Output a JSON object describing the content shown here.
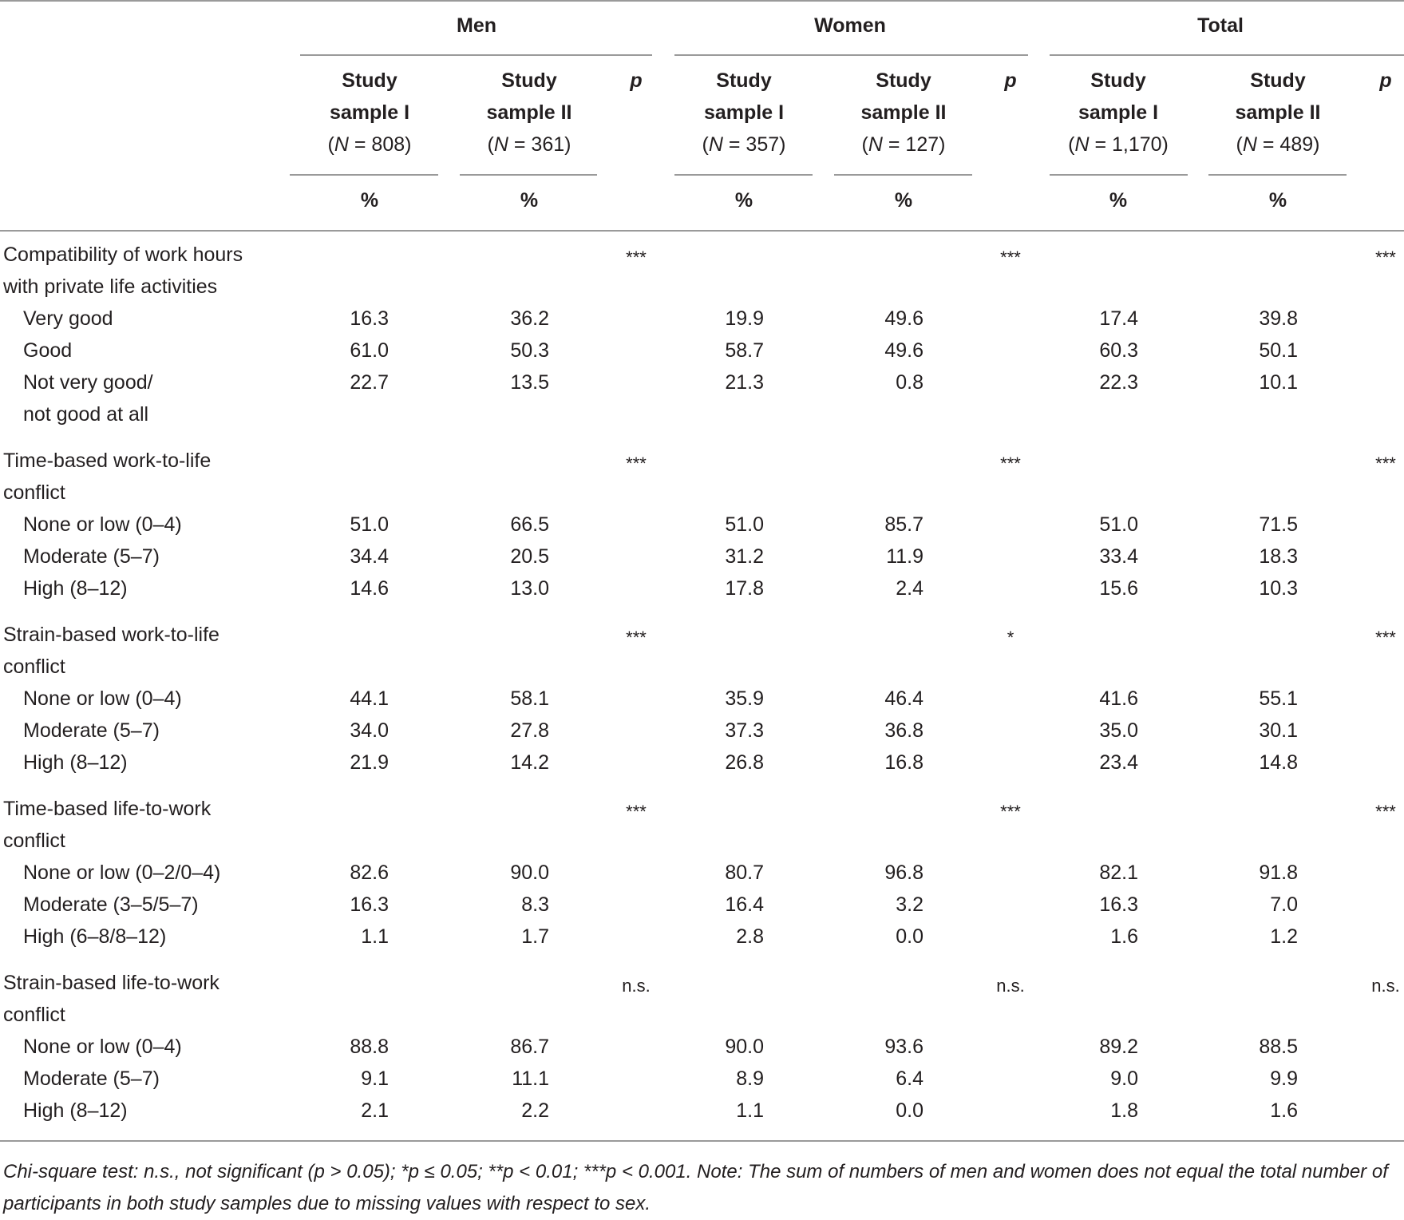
{
  "table": {
    "groups": [
      "Men",
      "Women",
      "Total"
    ],
    "columns": [
      {
        "group": "Men",
        "line1": "Study",
        "line2": "sample I",
        "n_prefix": "(",
        "n_var": "N",
        "n_value": " = 808)",
        "unit": "%"
      },
      {
        "group": "Men",
        "line1": "Study",
        "line2": "sample II",
        "n_prefix": "(",
        "n_var": "N",
        "n_value": " = 361)",
        "unit": "%"
      },
      {
        "group": "Women",
        "line1": "Study",
        "line2": "sample I",
        "n_prefix": "(",
        "n_var": "N",
        "n_value": " = 357)",
        "unit": "%"
      },
      {
        "group": "Women",
        "line1": "Study",
        "line2": "sample II",
        "n_prefix": "(",
        "n_var": "N",
        "n_value": " = 127)",
        "unit": "%"
      },
      {
        "group": "Total",
        "line1": "Study",
        "line2": "sample I",
        "n_prefix": "(",
        "n_var": "N",
        "n_value": " = 1,170)",
        "unit": "%"
      },
      {
        "group": "Total",
        "line1": "Study",
        "line2": "sample II",
        "n_prefix": "(",
        "n_var": "N",
        "n_value": " = 489)",
        "unit": "%"
      }
    ],
    "p_label": "p",
    "sections": [
      {
        "title": [
          "Compatibility of work hours",
          "with private life activities"
        ],
        "p": [
          "***",
          "***",
          "***"
        ],
        "rows": [
          {
            "label": [
              "Very good"
            ],
            "values": [
              "16.3",
              "36.2",
              "19.9",
              "49.6",
              "17.4",
              "39.8"
            ]
          },
          {
            "label": [
              "Good"
            ],
            "values": [
              "61.0",
              "50.3",
              "58.7",
              "49.6",
              "60.3",
              "50.1"
            ]
          },
          {
            "label": [
              "Not very good/",
              "not good at all"
            ],
            "values": [
              "22.7",
              "13.5",
              "21.3",
              "0.8",
              "22.3",
              "10.1"
            ]
          }
        ]
      },
      {
        "title": [
          "Time-based work-to-life",
          "conflict"
        ],
        "p": [
          "***",
          "***",
          "***"
        ],
        "rows": [
          {
            "label": [
              "None or low (0–4)"
            ],
            "values": [
              "51.0",
              "66.5",
              "51.0",
              "85.7",
              "51.0",
              "71.5"
            ]
          },
          {
            "label": [
              "Moderate (5–7)"
            ],
            "values": [
              "34.4",
              "20.5",
              "31.2",
              "11.9",
              "33.4",
              "18.3"
            ]
          },
          {
            "label": [
              "High (8–12)"
            ],
            "values": [
              "14.6",
              "13.0",
              "17.8",
              "2.4",
              "15.6",
              "10.3"
            ]
          }
        ]
      },
      {
        "title": [
          "Strain-based work-to-life",
          "conflict"
        ],
        "p": [
          "***",
          "*",
          "***"
        ],
        "rows": [
          {
            "label": [
              "None or low (0–4)"
            ],
            "values": [
              "44.1",
              "58.1",
              "35.9",
              "46.4",
              "41.6",
              "55.1"
            ]
          },
          {
            "label": [
              "Moderate (5–7)"
            ],
            "values": [
              "34.0",
              "27.8",
              "37.3",
              "36.8",
              "35.0",
              "30.1"
            ]
          },
          {
            "label": [
              "High (8–12)"
            ],
            "values": [
              "21.9",
              "14.2",
              "26.8",
              "16.8",
              "23.4",
              "14.8"
            ]
          }
        ]
      },
      {
        "title": [
          "Time-based life-to-work",
          "conflict"
        ],
        "p": [
          "***",
          "***",
          "***"
        ],
        "rows": [
          {
            "label": [
              "None or low (0–2/0–4)"
            ],
            "values": [
              "82.6",
              "90.0",
              "80.7",
              "96.8",
              "82.1",
              "91.8"
            ]
          },
          {
            "label": [
              "Moderate (3–5/5–7)"
            ],
            "values": [
              "16.3",
              "8.3",
              "16.4",
              "3.2",
              "16.3",
              "7.0"
            ]
          },
          {
            "label": [
              "High (6–8/8–12)"
            ],
            "values": [
              "1.1",
              "1.7",
              "2.8",
              "0.0",
              "1.6",
              "1.2"
            ]
          }
        ]
      },
      {
        "title": [
          "Strain-based life-to-work",
          "conflict"
        ],
        "p": [
          "n.s.",
          "n.s.",
          "n.s."
        ],
        "rows": [
          {
            "label": [
              "None or low (0–4)"
            ],
            "values": [
              "88.8",
              "86.7",
              "90.0",
              "93.6",
              "89.2",
              "88.5"
            ]
          },
          {
            "label": [
              "Moderate (5–7)"
            ],
            "values": [
              "9.1",
              "11.1",
              "8.9",
              "6.4",
              "9.0",
              "9.9"
            ]
          },
          {
            "label": [
              "High (8–12)"
            ],
            "values": [
              "2.1",
              "2.2",
              "1.1",
              "0.0",
              "1.8",
              "1.6"
            ]
          }
        ]
      }
    ],
    "footnote": "Chi-square test: n.s., not significant (p > 0.05); *p ≤ 0.05; **p < 0.01; ***p < 0.001. Note: The sum of numbers of men and women does not equal the total number of participants in both study samples due to missing values with respect to sex."
  }
}
